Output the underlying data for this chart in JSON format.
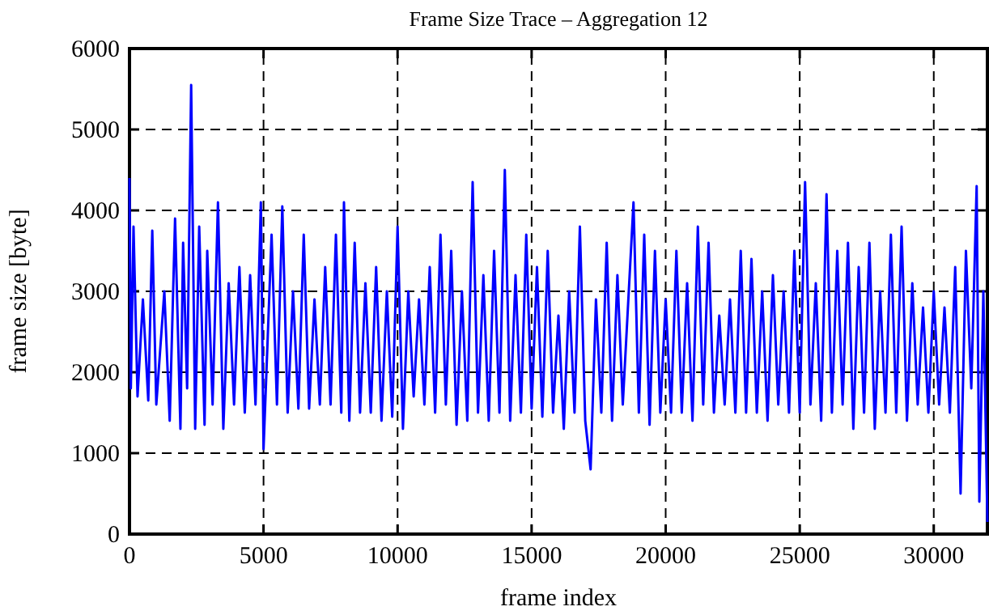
{
  "chart_data": {
    "type": "line",
    "title": "Frame Size Trace – Aggregation 12",
    "xlabel": "frame index",
    "ylabel": "frame size [byte]",
    "xlim": [
      0,
      32000
    ],
    "ylim": [
      0,
      6000
    ],
    "xticks": [
      0,
      5000,
      10000,
      15000,
      20000,
      25000,
      30000
    ],
    "yticks": [
      0,
      1000,
      2000,
      3000,
      4000,
      5000,
      6000
    ],
    "grid": true,
    "marker": "none",
    "line_style": "solid",
    "series": [
      {
        "color": "#0000ff",
        "x": [
          0,
          50,
          150,
          300,
          500,
          700,
          850,
          1000,
          1300,
          1500,
          1700,
          1900,
          2000,
          2150,
          2300,
          2450,
          2600,
          2800,
          2900,
          3100,
          3300,
          3500,
          3700,
          3900,
          4100,
          4300,
          4500,
          4700,
          4900,
          5000,
          5300,
          5500,
          5700,
          5900,
          6100,
          6300,
          6500,
          6700,
          6900,
          7100,
          7300,
          7500,
          7700,
          7900,
          8000,
          8200,
          8400,
          8600,
          8800,
          9000,
          9200,
          9400,
          9600,
          9800,
          10000,
          10200,
          10400,
          10600,
          10800,
          11000,
          11200,
          11400,
          11600,
          11800,
          12000,
          12200,
          12400,
          12600,
          12800,
          13000,
          13200,
          13400,
          13600,
          13800,
          14000,
          14200,
          14400,
          14600,
          14800,
          15000,
          15200,
          15400,
          15600,
          15800,
          16000,
          16200,
          16400,
          16600,
          16800,
          17000,
          17200,
          17400,
          17600,
          17800,
          18000,
          18200,
          18400,
          18800,
          19000,
          19200,
          19400,
          19600,
          19800,
          20000,
          20200,
          20400,
          20600,
          20800,
          21000,
          21200,
          21400,
          21600,
          21800,
          22000,
          22200,
          22400,
          22600,
          22800,
          23000,
          23200,
          23400,
          23600,
          23800,
          24000,
          24200,
          24400,
          24600,
          24800,
          25000,
          25200,
          25400,
          25600,
          25800,
          26000,
          26200,
          26400,
          26600,
          26800,
          27000,
          27200,
          27400,
          27600,
          27800,
          28000,
          28200,
          28400,
          28600,
          28800,
          29000,
          29200,
          29400,
          29600,
          29800,
          30000,
          30200,
          30400,
          30600,
          30800,
          31000,
          31200,
          31400,
          31600,
          31700,
          31850,
          32000
        ],
        "values": [
          4400,
          1800,
          3800,
          1700,
          2900,
          1650,
          3750,
          1600,
          3000,
          1400,
          3900,
          1300,
          3600,
          1800,
          5550,
          1300,
          3800,
          1350,
          3500,
          1600,
          4100,
          1300,
          3100,
          1600,
          3300,
          1500,
          3200,
          1600,
          4100,
          1050,
          3700,
          1600,
          4050,
          1500,
          3000,
          1550,
          3700,
          1550,
          2900,
          1600,
          3300,
          1600,
          3700,
          1500,
          4100,
          1400,
          3600,
          1500,
          3100,
          1500,
          3300,
          1400,
          3000,
          1450,
          3800,
          1300,
          3000,
          1700,
          2900,
          1600,
          3300,
          1500,
          3700,
          1600,
          3500,
          1350,
          3000,
          1400,
          4350,
          1500,
          3200,
          1400,
          3500,
          1500,
          4500,
          1400,
          3200,
          1500,
          3700,
          1550,
          3300,
          1450,
          3500,
          1500,
          2700,
          1300,
          3000,
          1500,
          3800,
          1400,
          800,
          2900,
          1500,
          3600,
          1400,
          3200,
          1600,
          4100,
          1500,
          3700,
          1350,
          3500,
          1500,
          2900,
          1500,
          3500,
          1500,
          3100,
          1400,
          3800,
          1600,
          3600,
          1500,
          2700,
          1600,
          2900,
          1500,
          3500,
          1500,
          3400,
          1500,
          3000,
          1400,
          3200,
          1600,
          3000,
          1500,
          3500,
          1500,
          4350,
          1600,
          3100,
          1400,
          4200,
          1500,
          3500,
          1600,
          3600,
          1300,
          3300,
          1500,
          3600,
          1300,
          3000,
          1500,
          3700,
          1500,
          3800,
          1400,
          3100,
          1600,
          2800,
          1500,
          3000,
          1600,
          2800,
          1500,
          3300,
          500,
          3500,
          1800,
          4300,
          400,
          3000,
          150
        ]
      }
    ]
  }
}
